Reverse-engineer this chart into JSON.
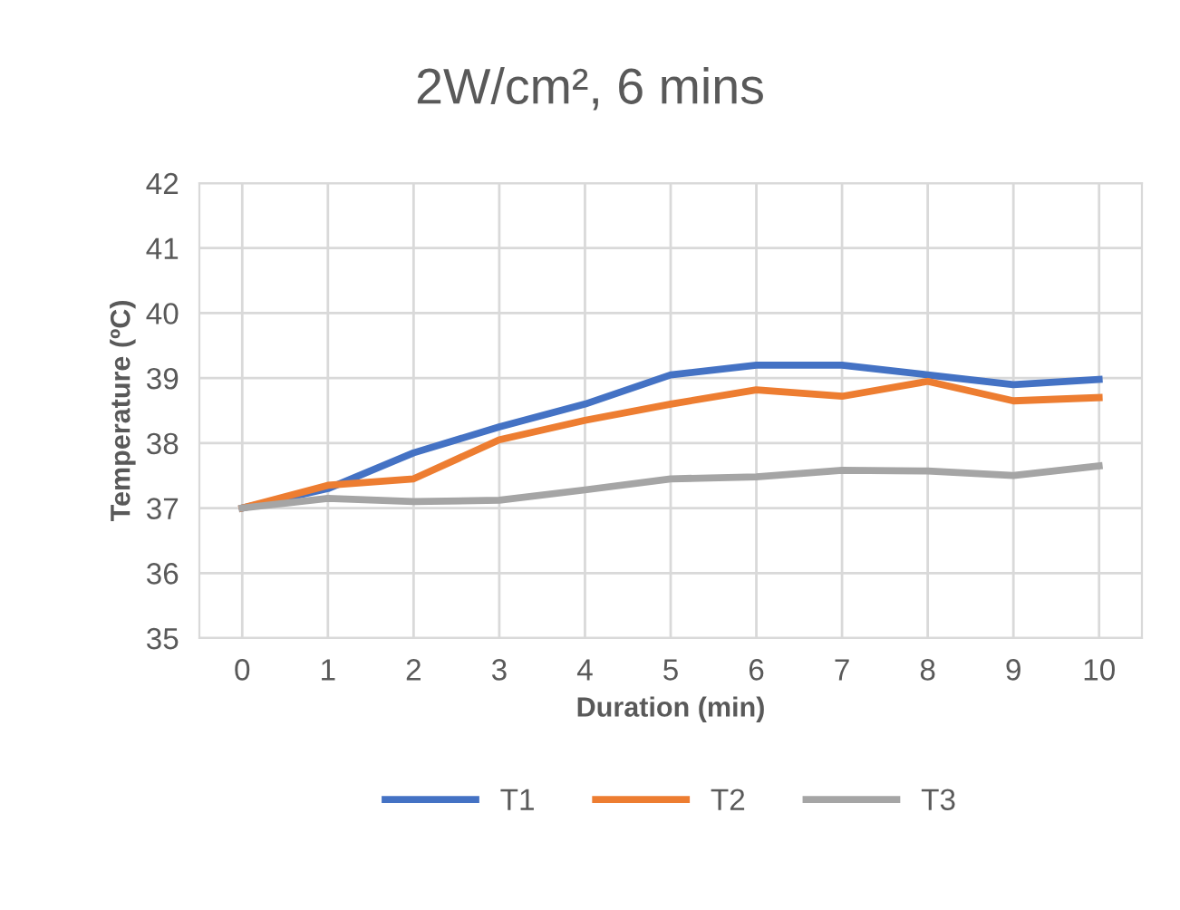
{
  "chart_data": {
    "type": "line",
    "title": "2W/cm², 6 mins",
    "xlabel": "Duration (min)",
    "ylabel": "Temperature (ºC)",
    "x": [
      0,
      1,
      2,
      3,
      4,
      5,
      6,
      7,
      8,
      9,
      10
    ],
    "xlim": [
      -0.5,
      10.5
    ],
    "xticks": [
      0,
      1,
      2,
      3,
      4,
      5,
      6,
      7,
      8,
      9,
      10
    ],
    "ylim": [
      35,
      42
    ],
    "yticks": [
      35,
      36,
      37,
      38,
      39,
      40,
      41,
      42
    ],
    "grid": true,
    "legend": "bottom",
    "marker": "none",
    "line_style": "solid",
    "series": [
      {
        "name": "T1",
        "color": "#4472c4",
        "values": [
          37.0,
          37.3,
          37.85,
          38.25,
          38.6,
          39.05,
          39.2,
          39.2,
          39.05,
          38.9,
          38.98
        ]
      },
      {
        "name": "T2",
        "color": "#ed7d31",
        "values": [
          37.0,
          37.35,
          37.45,
          38.05,
          38.35,
          38.6,
          38.82,
          38.72,
          38.95,
          38.65,
          38.7
        ]
      },
      {
        "name": "T3",
        "color": "#a5a5a5",
        "values": [
          37.0,
          37.15,
          37.1,
          37.12,
          37.28,
          37.45,
          37.48,
          37.58,
          37.57,
          37.5,
          37.65
        ]
      }
    ]
  }
}
